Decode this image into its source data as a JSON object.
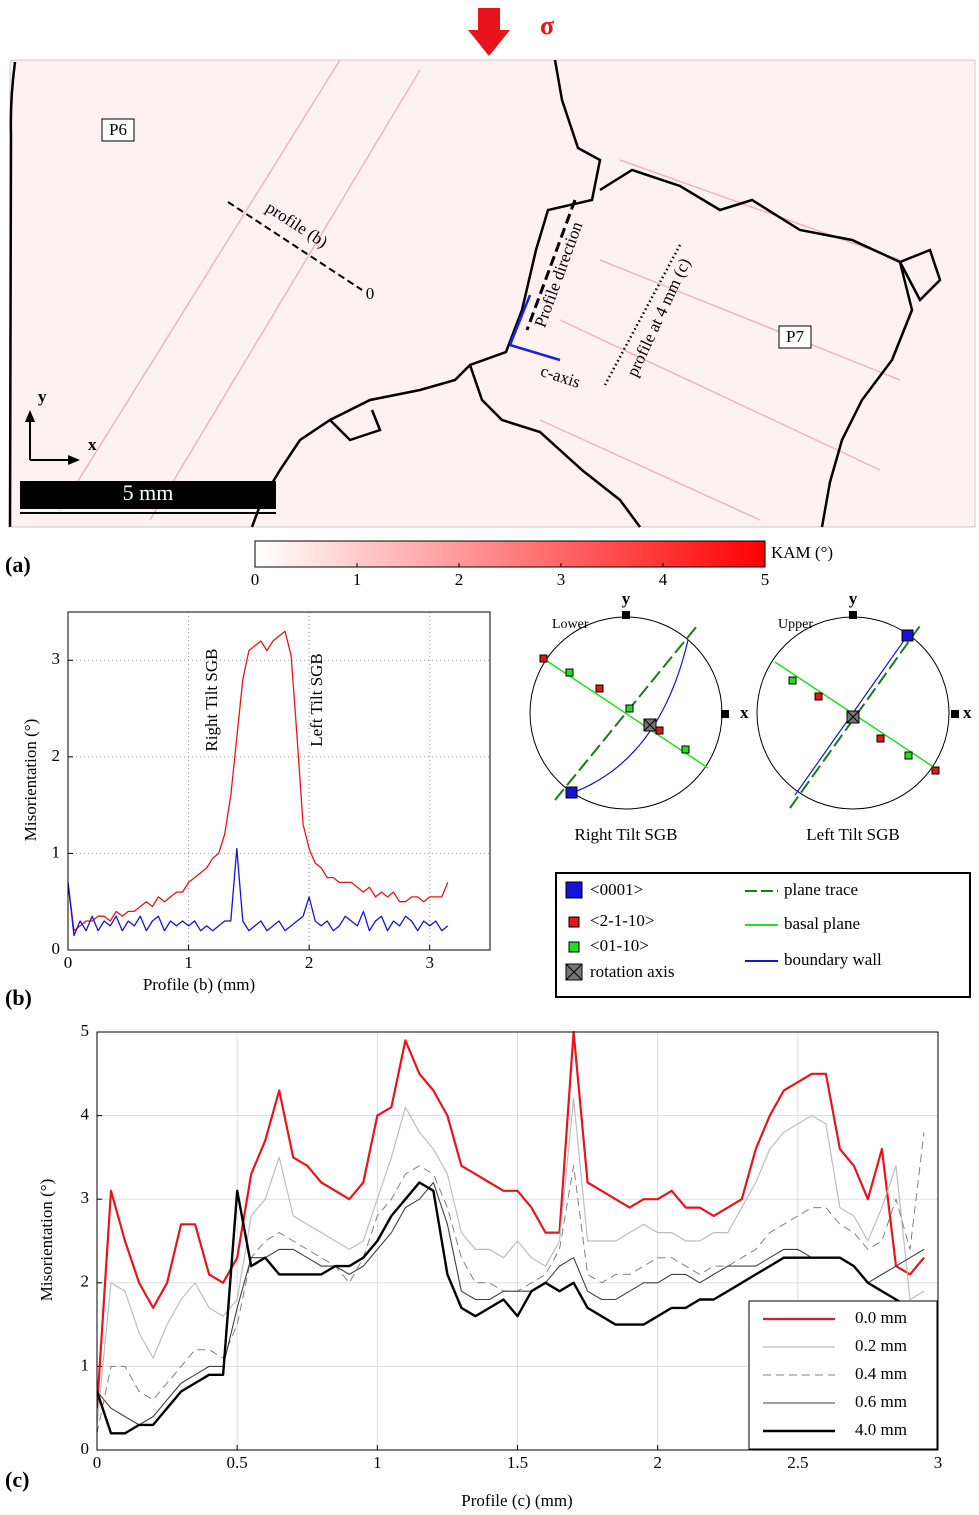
{
  "panel_a": {
    "label": "(a)",
    "stress": "σ",
    "grains": [
      "P6",
      "P7"
    ],
    "profile_b": "profile (b)",
    "origin": "0",
    "profile_direction": "Profile direction",
    "c_axis": "c-axis",
    "profile_c": "profile at 4 mm (c)",
    "axis_y": "y",
    "axis_x": "x",
    "scale_bar": "5 mm",
    "colorbar": {
      "label": "KAM (°)",
      "lim": [
        0,
        5
      ],
      "ticks": [
        0,
        1,
        2,
        3,
        4,
        5
      ],
      "color": "#ff0000"
    }
  },
  "pole_figures": [
    {
      "hemisphere": "Lower",
      "y": "y",
      "x": "x",
      "caption": "Right Tilt SGB"
    },
    {
      "hemisphere": "Upper",
      "y": "y",
      "x": "x",
      "caption": "Left Tilt SGB"
    }
  ],
  "pole_legend": [
    "<0001>",
    "<2-1-10>",
    "<01-10>",
    "rotation axis",
    "plane trace",
    "basal plane",
    "boundary wall"
  ],
  "chart_data": [
    {
      "type": "line",
      "panel_label": "(b)",
      "xlabel": "Profile (b) (mm)",
      "ylabel": "Misorientation (°)",
      "annotations": [
        "Right Tilt SGB",
        "Left Tilt SGB"
      ],
      "xlim": [
        0,
        3.5
      ],
      "ylim": [
        0,
        3.5
      ],
      "xticks": [
        0,
        1,
        2,
        3
      ],
      "yticks": [
        0,
        1,
        2,
        3
      ],
      "grid": "dotted",
      "x": [
        0,
        0.05,
        0.1,
        0.15,
        0.2,
        0.25,
        0.3,
        0.35,
        0.4,
        0.45,
        0.5,
        0.55,
        0.6,
        0.65,
        0.7,
        0.75,
        0.8,
        0.85,
        0.9,
        0.95,
        1,
        1.05,
        1.1,
        1.15,
        1.2,
        1.25,
        1.3,
        1.35,
        1.4,
        1.45,
        1.5,
        1.55,
        1.6,
        1.65,
        1.7,
        1.75,
        1.8,
        1.85,
        1.9,
        1.95,
        2,
        2.05,
        2.1,
        2.15,
        2.2,
        2.25,
        2.3,
        2.35,
        2.4,
        2.45,
        2.5,
        2.55,
        2.6,
        2.65,
        2.7,
        2.75,
        2.8,
        2.85,
        2.9,
        2.95,
        3,
        3.05,
        3.1,
        3.15
      ],
      "series": [
        {
          "color": "#e8141c",
          "line_width": 1.3,
          "values": [
            0.7,
            0.2,
            0.25,
            0.3,
            0.3,
            0.35,
            0.35,
            0.3,
            0.4,
            0.35,
            0.4,
            0.4,
            0.45,
            0.5,
            0.45,
            0.55,
            0.5,
            0.55,
            0.6,
            0.6,
            0.7,
            0.75,
            0.8,
            0.85,
            0.95,
            1.0,
            1.2,
            1.6,
            2.2,
            2.8,
            3.1,
            3.15,
            3.2,
            3.1,
            3.2,
            3.25,
            3.3,
            3.05,
            2.2,
            1.3,
            1.05,
            0.9,
            0.85,
            0.75,
            0.75,
            0.7,
            0.7,
            0.7,
            0.65,
            0.6,
            0.65,
            0.55,
            0.6,
            0.55,
            0.6,
            0.5,
            0.5,
            0.55,
            0.55,
            0.5,
            0.55,
            0.55,
            0.55,
            0.7
          ]
        },
        {
          "color": "#1414d8",
          "line_width": 1.3,
          "values": [
            0.7,
            0.15,
            0.3,
            0.2,
            0.35,
            0.2,
            0.3,
            0.25,
            0.35,
            0.2,
            0.3,
            0.25,
            0.35,
            0.2,
            0.3,
            0.35,
            0.2,
            0.3,
            0.25,
            0.3,
            0.25,
            0.3,
            0.2,
            0.25,
            0.2,
            0.25,
            0.3,
            0.3,
            1.05,
            0.3,
            0.2,
            0.25,
            0.3,
            0.2,
            0.25,
            0.3,
            0.2,
            0.25,
            0.3,
            0.35,
            0.55,
            0.3,
            0.25,
            0.3,
            0.2,
            0.25,
            0.35,
            0.3,
            0.25,
            0.4,
            0.2,
            0.3,
            0.35,
            0.2,
            0.3,
            0.25,
            0.35,
            0.3,
            0.2,
            0.3,
            0.25,
            0.3,
            0.2,
            0.25
          ]
        }
      ]
    },
    {
      "type": "line",
      "panel_label": "(c)",
      "xlabel": "Profile (c) (mm)",
      "ylabel": "Misorientation (°)",
      "xlim": [
        0,
        3
      ],
      "ylim": [
        0,
        5
      ],
      "xticks": [
        0,
        0.5,
        1,
        1.5,
        2,
        2.5,
        3
      ],
      "yticks": [
        0,
        1,
        2,
        3,
        4,
        5
      ],
      "grid": "solid",
      "legend": "lower right",
      "x": [
        0,
        0.05,
        0.1,
        0.15,
        0.2,
        0.25,
        0.3,
        0.35,
        0.4,
        0.45,
        0.5,
        0.55,
        0.6,
        0.65,
        0.7,
        0.75,
        0.8,
        0.85,
        0.9,
        0.95,
        1,
        1.05,
        1.1,
        1.15,
        1.2,
        1.25,
        1.3,
        1.35,
        1.4,
        1.45,
        1.5,
        1.55,
        1.6,
        1.65,
        1.7,
        1.75,
        1.8,
        1.85,
        1.9,
        1.95,
        2,
        2.05,
        2.1,
        2.15,
        2.2,
        2.25,
        2.3,
        2.35,
        2.4,
        2.45,
        2.5,
        2.55,
        2.6,
        2.65,
        2.7,
        2.75,
        2.8,
        2.85,
        2.9,
        2.95
      ],
      "series": [
        {
          "name": "0.0 mm",
          "color": "#e8141c",
          "line_width": 2.2,
          "dash": false,
          "values": [
            0.5,
            3.1,
            2.5,
            2.0,
            1.7,
            2.0,
            2.7,
            2.7,
            2.1,
            2.0,
            2.3,
            3.3,
            3.7,
            4.3,
            3.5,
            3.4,
            3.2,
            3.1,
            3.0,
            3.2,
            4.0,
            4.1,
            4.9,
            4.5,
            4.3,
            4.0,
            3.4,
            3.3,
            3.2,
            3.1,
            3.1,
            2.9,
            2.6,
            2.6,
            5.0,
            3.2,
            3.1,
            3.0,
            2.9,
            3.0,
            3.0,
            3.1,
            2.9,
            2.9,
            2.8,
            2.9,
            3.0,
            3.6,
            4.0,
            4.3,
            4.4,
            4.5,
            4.5,
            3.6,
            3.4,
            3.0,
            3.6,
            2.2,
            2.1,
            2.3
          ]
        },
        {
          "name": "0.2 mm",
          "color": "#bdbdbd",
          "line_width": 1.2,
          "dash": false,
          "values": [
            0.3,
            2.0,
            1.9,
            1.4,
            1.1,
            1.5,
            1.8,
            2.0,
            1.7,
            1.6,
            1.8,
            2.8,
            3.0,
            3.5,
            2.8,
            2.7,
            2.6,
            2.5,
            2.4,
            2.5,
            3.0,
            3.5,
            4.1,
            3.8,
            3.6,
            3.3,
            2.6,
            2.4,
            2.4,
            2.3,
            2.5,
            2.3,
            2.2,
            2.5,
            4.2,
            2.5,
            2.5,
            2.5,
            2.6,
            2.7,
            2.6,
            2.6,
            2.5,
            2.5,
            2.6,
            2.6,
            2.9,
            3.2,
            3.6,
            3.8,
            3.9,
            4.0,
            3.9,
            2.9,
            2.8,
            2.5,
            2.9,
            3.4,
            1.8,
            1.9
          ]
        },
        {
          "name": "0.4 mm",
          "color": "#808080",
          "line_width": 1,
          "dash": true,
          "values": [
            0.2,
            1.0,
            1.0,
            0.7,
            0.6,
            0.8,
            1.0,
            1.2,
            1.2,
            1.1,
            1.5,
            2.3,
            2.5,
            2.6,
            2.5,
            2.4,
            2.3,
            2.2,
            2.0,
            2.3,
            2.8,
            3.0,
            3.3,
            3.4,
            3.3,
            2.9,
            2.3,
            2.0,
            2.0,
            1.9,
            1.9,
            2.0,
            2.1,
            2.4,
            3.4,
            2.1,
            2.0,
            2.1,
            2.1,
            2.2,
            2.3,
            2.3,
            2.2,
            2.1,
            2.2,
            2.2,
            2.3,
            2.4,
            2.6,
            2.7,
            2.8,
            2.9,
            2.9,
            2.7,
            2.6,
            2.4,
            2.5,
            3.0,
            2.4,
            3.8
          ]
        },
        {
          "name": "0.6 mm",
          "color": "#404040",
          "line_width": 1.1,
          "dash": false,
          "values": [
            0.7,
            0.5,
            0.4,
            0.3,
            0.4,
            0.6,
            0.8,
            0.9,
            1.0,
            1.0,
            1.7,
            2.3,
            2.3,
            2.4,
            2.4,
            2.3,
            2.2,
            2.2,
            2.1,
            2.2,
            2.4,
            2.6,
            2.9,
            3.0,
            3.2,
            2.7,
            1.9,
            1.8,
            1.8,
            1.9,
            1.9,
            1.9,
            2.0,
            2.2,
            2.3,
            1.9,
            1.8,
            1.8,
            1.9,
            2.0,
            2.0,
            2.1,
            2.1,
            2.0,
            2.1,
            2.2,
            2.2,
            2.2,
            2.3,
            2.4,
            2.4,
            2.3,
            2.3,
            2.3,
            2.2,
            2.0,
            2.1,
            2.2,
            2.3,
            2.4
          ]
        },
        {
          "name": "4.0 mm",
          "color": "#000000",
          "line_width": 2.4,
          "dash": false,
          "values": [
            0.7,
            0.2,
            0.2,
            0.3,
            0.3,
            0.5,
            0.7,
            0.8,
            0.9,
            0.9,
            3.1,
            2.2,
            2.3,
            2.1,
            2.1,
            2.1,
            2.1,
            2.2,
            2.2,
            2.3,
            2.5,
            2.8,
            3.0,
            3.2,
            3.1,
            2.1,
            1.7,
            1.6,
            1.7,
            1.8,
            1.6,
            1.9,
            2.0,
            1.9,
            2.0,
            1.7,
            1.6,
            1.5,
            1.5,
            1.5,
            1.6,
            1.7,
            1.7,
            1.8,
            1.8,
            1.9,
            2.0,
            2.1,
            2.2,
            2.3,
            2.3,
            2.3,
            2.3,
            2.3,
            2.2,
            2.0,
            1.9,
            1.8,
            1.7,
            1.7
          ]
        }
      ]
    }
  ]
}
